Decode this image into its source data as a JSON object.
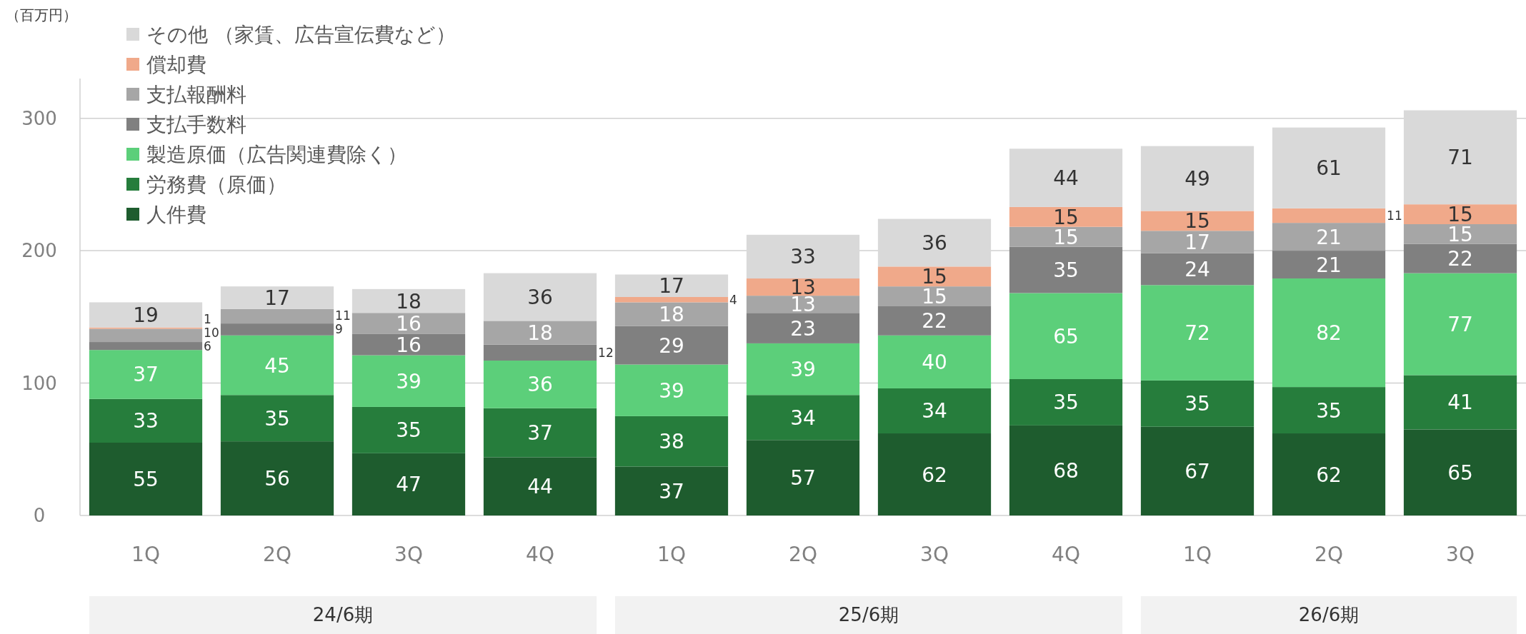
{
  "chart_data": {
    "type": "bar",
    "stacked": true,
    "data_labels": true,
    "grid": "y",
    "legend": "top left",
    "ylabel": "（百万円）",
    "categories": [
      "1Q",
      "2Q",
      "3Q",
      "4Q",
      "1Q",
      "2Q",
      "3Q",
      "4Q",
      "1Q",
      "2Q",
      "3Q"
    ],
    "annotations": [
      "24/6期",
      "25/6期",
      "26/6期"
    ],
    "ylim": [
      0,
      330
    ],
    "yticks": [
      0,
      100,
      200,
      300
    ],
    "series": [
      {
        "name": "人件費",
        "color": "#1e5c2e",
        "values": [
          55,
          56,
          47,
          44,
          37,
          57,
          62,
          68,
          67,
          62,
          65
        ]
      },
      {
        "name": "労務費（原価）",
        "color": "#267d3c",
        "values": [
          33,
          35,
          35,
          37,
          38,
          34,
          34,
          35,
          35,
          35,
          41
        ]
      },
      {
        "name": "製造原価（広告関連費除く）",
        "color": "#5ccf7a",
        "values": [
          37,
          45,
          39,
          36,
          39,
          39,
          40,
          65,
          72,
          82,
          77
        ]
      },
      {
        "name": "支払手数料",
        "color": "#808080",
        "values": [
          6,
          9,
          16,
          12,
          29,
          23,
          22,
          35,
          24,
          21,
          22
        ]
      },
      {
        "name": "支払報酬料",
        "color": "#a6a6a6",
        "values": [
          10,
          11,
          16,
          18,
          18,
          13,
          15,
          15,
          17,
          21,
          15
        ]
      },
      {
        "name": "償却費",
        "color": "#f0a98a",
        "values": [
          1,
          null,
          null,
          null,
          4,
          13,
          15,
          15,
          15,
          11,
          15
        ]
      },
      {
        "name": "その他 （家賃、広告宣伝費など）",
        "color": "#d9d9d9",
        "values": [
          19,
          17,
          18,
          36,
          17,
          33,
          36,
          44,
          49,
          61,
          71
        ]
      }
    ]
  }
}
